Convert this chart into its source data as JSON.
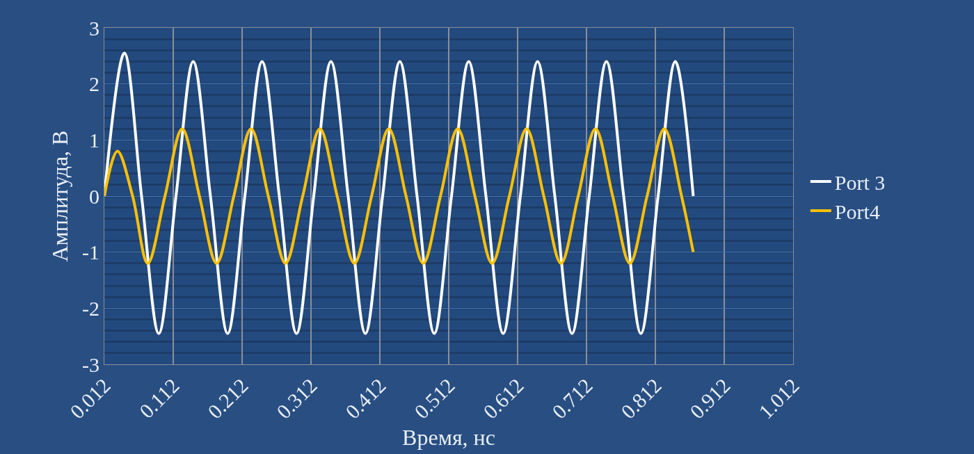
{
  "chart_data": {
    "type": "line",
    "xlabel": "Время, нс",
    "ylabel": "Амплитуда, В",
    "x": [
      0.012,
      0.041,
      0.066,
      0.091,
      0.116,
      0.141,
      0.166,
      0.191,
      0.216,
      0.241,
      0.266,
      0.291,
      0.316,
      0.341,
      0.366,
      0.391,
      0.416,
      0.441,
      0.466,
      0.491,
      0.516,
      0.541,
      0.566,
      0.591,
      0.616,
      0.641,
      0.666,
      0.691,
      0.716,
      0.741,
      0.766,
      0.791,
      0.816,
      0.841,
      0.867
    ],
    "series": [
      {
        "name": "Port 3",
        "color": "#ffffff",
        "values": [
          0,
          2.55,
          0,
          -2.45,
          0,
          2.4,
          0,
          -2.45,
          0,
          2.4,
          0,
          -2.45,
          0,
          2.4,
          0,
          -2.45,
          0,
          2.4,
          0,
          -2.45,
          0,
          2.4,
          0,
          -2.45,
          0,
          2.4,
          0,
          -2.45,
          0,
          2.4,
          0,
          -2.45,
          0,
          2.4,
          0
        ]
      },
      {
        "name": "Port4",
        "color": "#ffc000",
        "x": [
          0.012,
          0.031,
          0.053,
          0.075,
          0.1,
          0.125,
          0.15,
          0.175,
          0.2,
          0.225,
          0.25,
          0.275,
          0.3,
          0.325,
          0.35,
          0.375,
          0.4,
          0.425,
          0.45,
          0.475,
          0.5,
          0.525,
          0.55,
          0.575,
          0.6,
          0.625,
          0.65,
          0.675,
          0.7,
          0.725,
          0.75,
          0.775,
          0.8,
          0.825,
          0.85,
          0.867
        ],
        "values": [
          0,
          0.8,
          0,
          -1.2,
          0,
          1.2,
          0,
          -1.2,
          0,
          1.2,
          0,
          -1.2,
          0,
          1.2,
          0,
          -1.2,
          0,
          1.2,
          0,
          -1.2,
          0,
          1.2,
          0,
          -1.2,
          0,
          1.2,
          0,
          -1.2,
          0,
          1.2,
          0,
          -1.2,
          0,
          1.2,
          0,
          -1.0
        ]
      }
    ],
    "xlim": [
      0.012,
      1.012
    ],
    "xticks": [
      0.012,
      0.112,
      0.212,
      0.312,
      0.412,
      0.512,
      0.612,
      0.712,
      0.812,
      0.912,
      1.012
    ],
    "ylim": [
      -3,
      3
    ],
    "yticks": [
      -3,
      -2,
      -1,
      0,
      1,
      2,
      3
    ],
    "grid": true,
    "legend": "right",
    "marker": "none",
    "line_style": "solid"
  }
}
